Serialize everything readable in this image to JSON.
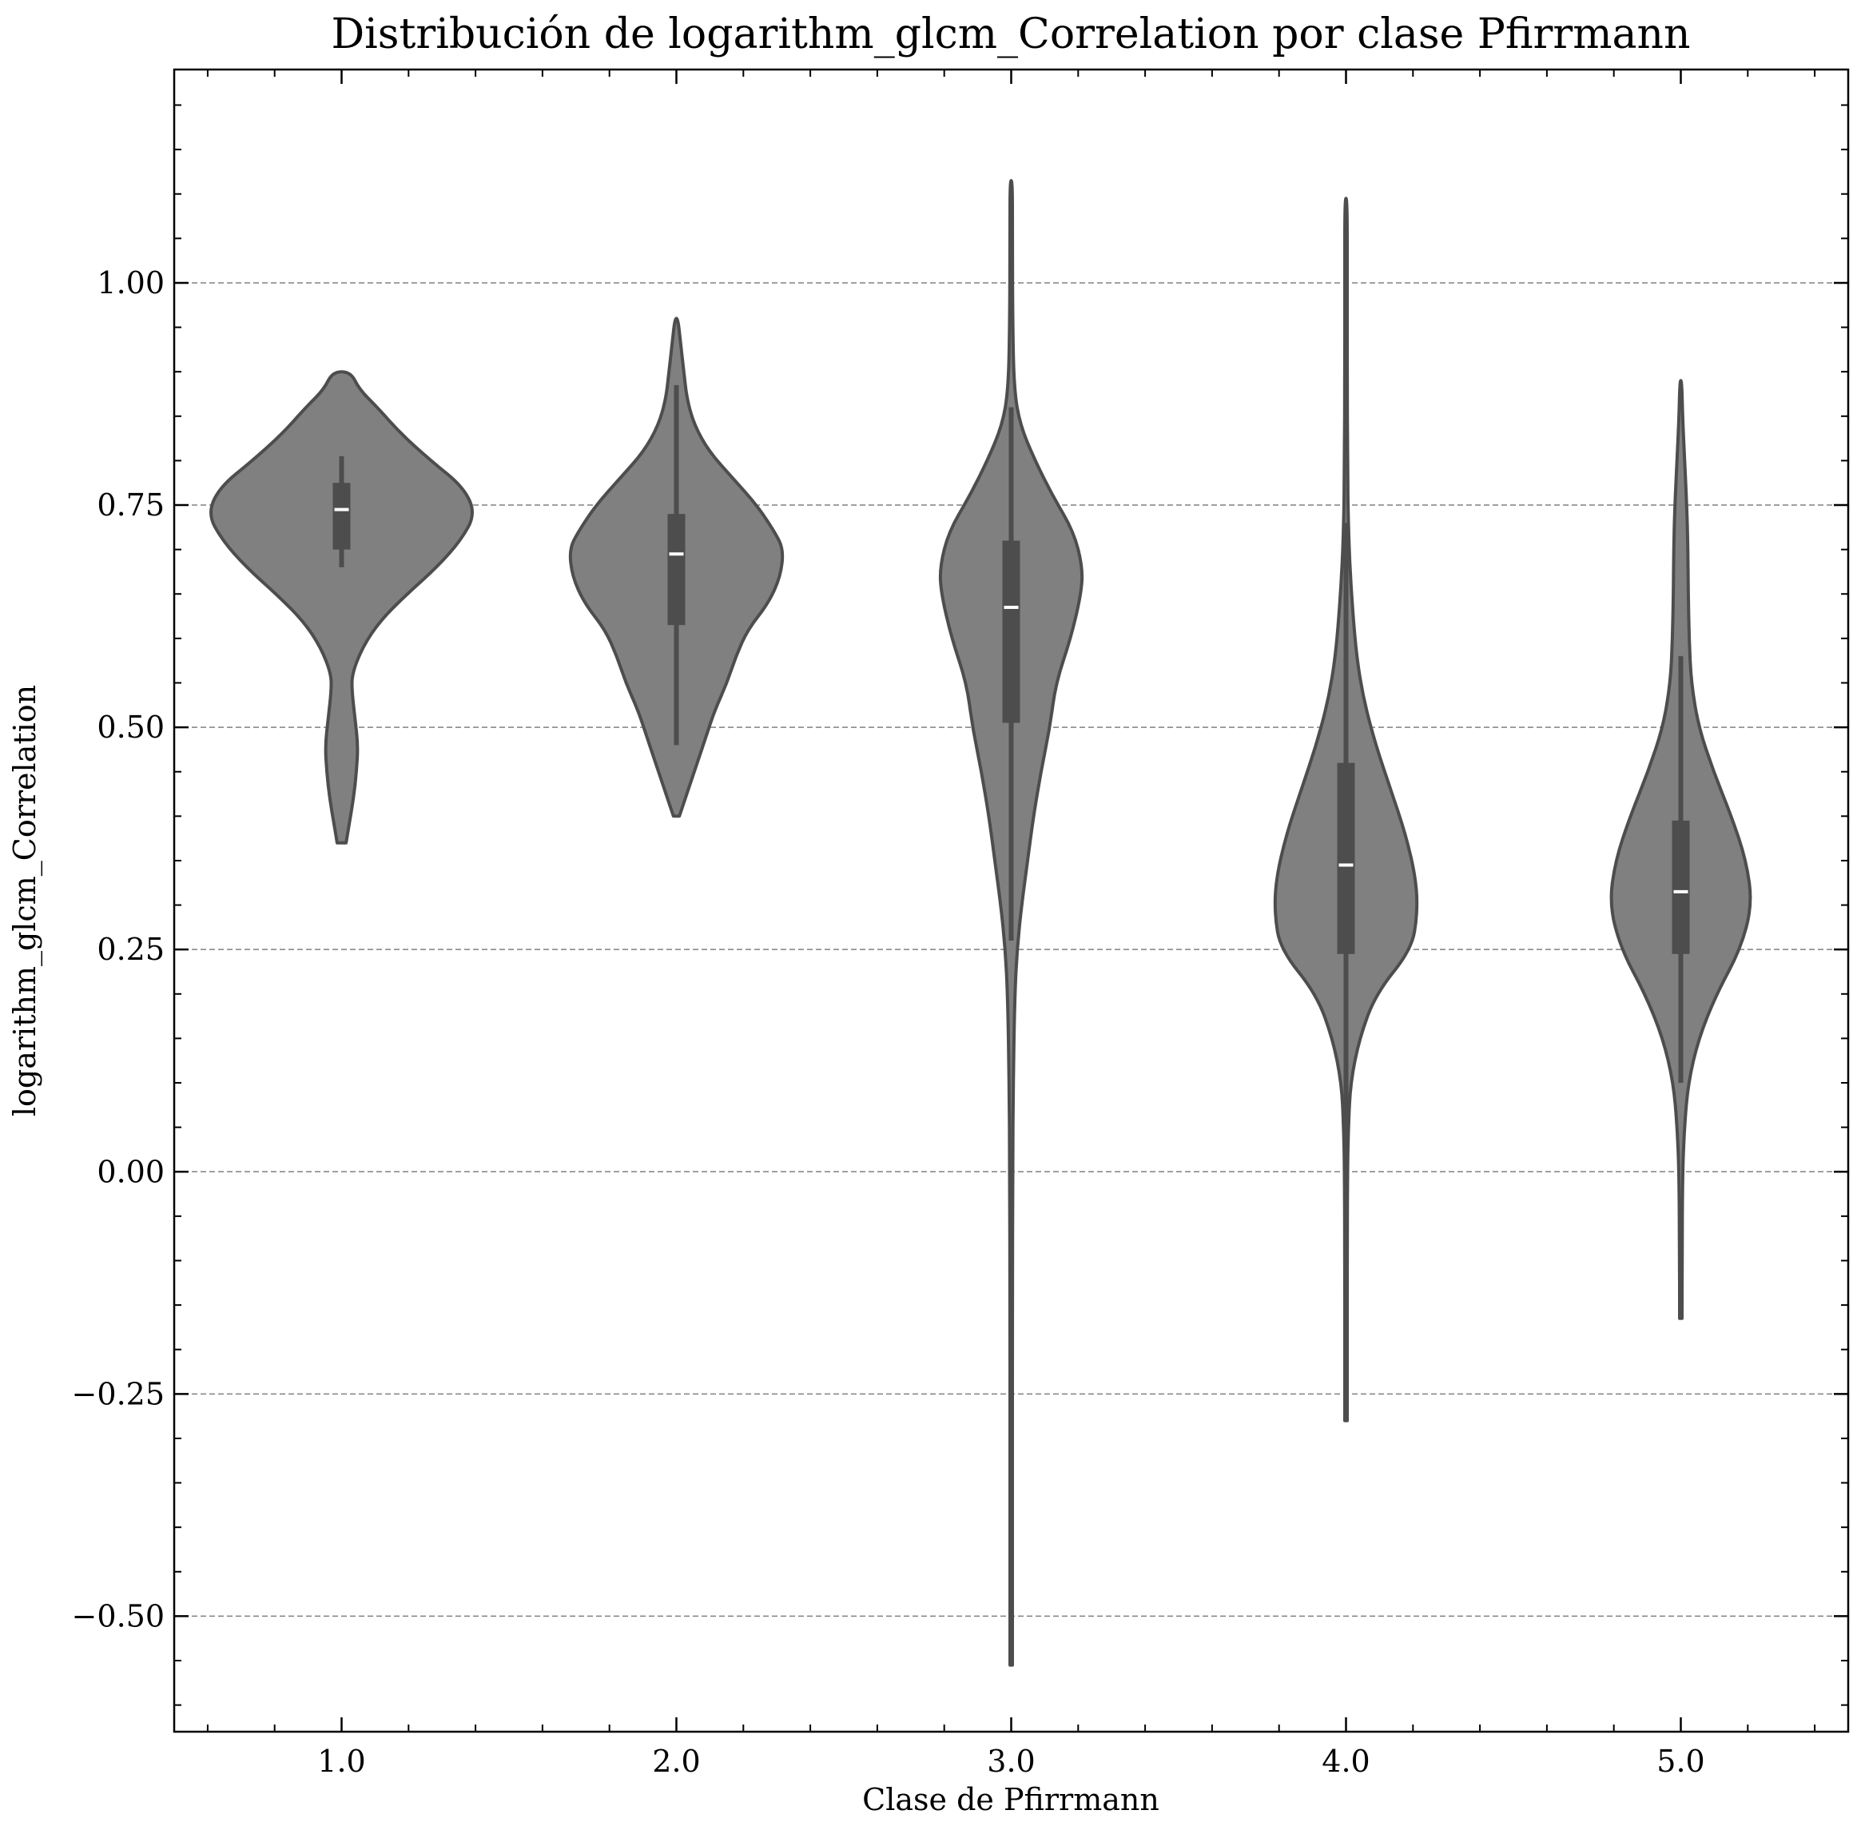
{
  "chart_data": {
    "type": "violin",
    "title": "Distribución de logarithm_glcm_Correlation por clase Pfirrmann",
    "xlabel": "Clase de Pfirrmann",
    "ylabel": "logarithm_glcm_Correlation",
    "categories": [
      "1.0",
      "2.0",
      "3.0",
      "4.0",
      "5.0"
    ],
    "ylim": [
      -0.63,
      1.24
    ],
    "yticks": [
      -0.5,
      -0.25,
      0.0,
      0.25,
      0.5,
      0.75,
      1.0
    ],
    "ytick_labels": [
      "−0.50",
      "−0.25",
      "0.00",
      "0.25",
      "0.50",
      "0.75",
      "1.00"
    ],
    "grid": "horizontal dashed",
    "colors": {
      "violin_fill": "#808080",
      "violin_edge": "#4d4d4d",
      "box": "#4d4d4d",
      "median": "#ffffff",
      "grid": "#808080"
    },
    "series": [
      {
        "category": "1.0",
        "min": 0.37,
        "max": 0.9,
        "q1": 0.7,
        "median": 0.745,
        "q3": 0.775,
        "whisker_low": 0.68,
        "whisker_high": 0.805,
        "density": [
          [
            0.37,
            0.015
          ],
          [
            0.39,
            0.025
          ],
          [
            0.42,
            0.04
          ],
          [
            0.45,
            0.05
          ],
          [
            0.48,
            0.055
          ],
          [
            0.51,
            0.045
          ],
          [
            0.54,
            0.035
          ],
          [
            0.56,
            0.035
          ],
          [
            0.59,
            0.07
          ],
          [
            0.62,
            0.13
          ],
          [
            0.65,
            0.22
          ],
          [
            0.68,
            0.32
          ],
          [
            0.71,
            0.4
          ],
          [
            0.74,
            0.45
          ],
          [
            0.77,
            0.41
          ],
          [
            0.8,
            0.3
          ],
          [
            0.83,
            0.2
          ],
          [
            0.86,
            0.12
          ],
          [
            0.88,
            0.06
          ],
          [
            0.9,
            0.03
          ]
        ]
      },
      {
        "category": "2.0",
        "min": 0.4,
        "max": 0.96,
        "q1": 0.615,
        "median": 0.695,
        "q3": 0.74,
        "whisker_low": 0.48,
        "whisker_high": 0.885,
        "density": [
          [
            0.4,
            0.01
          ],
          [
            0.43,
            0.04
          ],
          [
            0.46,
            0.07
          ],
          [
            0.49,
            0.1
          ],
          [
            0.52,
            0.13
          ],
          [
            0.55,
            0.17
          ],
          [
            0.58,
            0.2
          ],
          [
            0.61,
            0.24
          ],
          [
            0.64,
            0.31
          ],
          [
            0.67,
            0.35
          ],
          [
            0.7,
            0.36
          ],
          [
            0.72,
            0.33
          ],
          [
            0.75,
            0.27
          ],
          [
            0.78,
            0.19
          ],
          [
            0.81,
            0.11
          ],
          [
            0.84,
            0.06
          ],
          [
            0.87,
            0.035
          ],
          [
            0.9,
            0.025
          ],
          [
            0.93,
            0.015
          ],
          [
            0.96,
            0.005
          ]
        ]
      },
      {
        "category": "3.0",
        "min": -0.555,
        "max": 1.115,
        "q1": 0.505,
        "median": 0.635,
        "q3": 0.71,
        "whisker_low": 0.26,
        "whisker_high": 0.86,
        "density": [
          [
            -0.555,
            0.004
          ],
          [
            -0.45,
            0.004
          ],
          [
            -0.3,
            0.004
          ],
          [
            -0.15,
            0.004
          ],
          [
            0.0,
            0.005
          ],
          [
            0.1,
            0.007
          ],
          [
            0.2,
            0.012
          ],
          [
            0.25,
            0.02
          ],
          [
            0.3,
            0.035
          ],
          [
            0.35,
            0.055
          ],
          [
            0.4,
            0.075
          ],
          [
            0.45,
            0.1
          ],
          [
            0.5,
            0.13
          ],
          [
            0.55,
            0.15
          ],
          [
            0.6,
            0.2
          ],
          [
            0.65,
            0.235
          ],
          [
            0.68,
            0.24
          ],
          [
            0.72,
            0.21
          ],
          [
            0.76,
            0.14
          ],
          [
            0.8,
            0.08
          ],
          [
            0.84,
            0.03
          ],
          [
            0.88,
            0.01
          ],
          [
            0.95,
            0.005
          ],
          [
            1.05,
            0.004
          ],
          [
            1.115,
            0.004
          ]
        ]
      },
      {
        "category": "4.0",
        "min": -0.28,
        "max": 1.095,
        "q1": 0.245,
        "median": 0.345,
        "q3": 0.46,
        "whisker_low": -0.02,
        "whisker_high": 0.73,
        "density": [
          [
            -0.28,
            0.004
          ],
          [
            -0.2,
            0.004
          ],
          [
            -0.1,
            0.004
          ],
          [
            0.0,
            0.005
          ],
          [
            0.05,
            0.008
          ],
          [
            0.1,
            0.015
          ],
          [
            0.15,
            0.045
          ],
          [
            0.2,
            0.1
          ],
          [
            0.25,
            0.22
          ],
          [
            0.29,
            0.24
          ],
          [
            0.33,
            0.235
          ],
          [
            0.38,
            0.2
          ],
          [
            0.43,
            0.15
          ],
          [
            0.48,
            0.1
          ],
          [
            0.53,
            0.06
          ],
          [
            0.58,
            0.035
          ],
          [
            0.65,
            0.018
          ],
          [
            0.72,
            0.008
          ],
          [
            0.8,
            0.005
          ],
          [
            0.9,
            0.004
          ],
          [
            1.0,
            0.004
          ],
          [
            1.095,
            0.004
          ]
        ]
      },
      {
        "category": "5.0",
        "min": -0.165,
        "max": 0.89,
        "q1": 0.245,
        "median": 0.315,
        "q3": 0.395,
        "whisker_low": 0.1,
        "whisker_high": 0.58,
        "density": [
          [
            -0.165,
            0.004
          ],
          [
            -0.1,
            0.004
          ],
          [
            0.0,
            0.006
          ],
          [
            0.05,
            0.012
          ],
          [
            0.1,
            0.025
          ],
          [
            0.15,
            0.06
          ],
          [
            0.2,
            0.12
          ],
          [
            0.25,
            0.2
          ],
          [
            0.3,
            0.24
          ],
          [
            0.35,
            0.22
          ],
          [
            0.4,
            0.17
          ],
          [
            0.45,
            0.11
          ],
          [
            0.5,
            0.06
          ],
          [
            0.55,
            0.035
          ],
          [
            0.6,
            0.028
          ],
          [
            0.65,
            0.025
          ],
          [
            0.7,
            0.024
          ],
          [
            0.75,
            0.02
          ],
          [
            0.8,
            0.013
          ],
          [
            0.85,
            0.006
          ],
          [
            0.89,
            0.003
          ]
        ]
      }
    ]
  }
}
